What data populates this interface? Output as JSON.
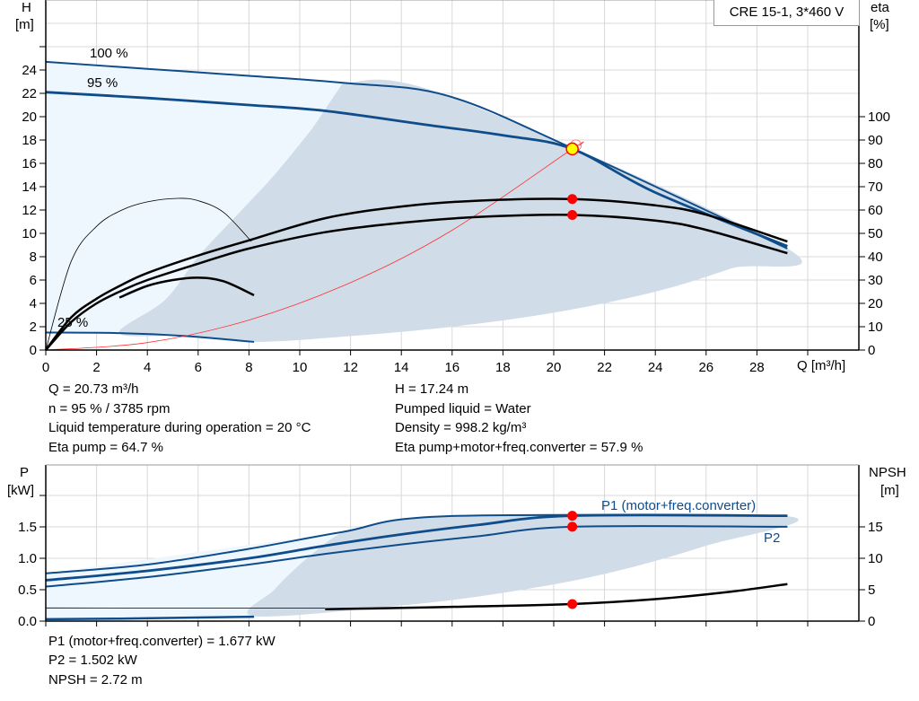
{
  "chart_data": [
    {
      "type": "line",
      "title": "CRE 15-1, 3*460 V",
      "xlabel": "Q [m³/h]",
      "ylabel": "H\n[m]",
      "y2label": "eta\n[%]",
      "xlim": [
        0,
        32
      ],
      "ylim": [
        0,
        30
      ],
      "y2lim": [
        0,
        115
      ],
      "xticks": [
        0,
        2,
        4,
        6,
        8,
        10,
        12,
        14,
        16,
        18,
        20,
        22,
        24,
        26,
        28
      ],
      "yticks": [
        0,
        2,
        4,
        6,
        8,
        10,
        12,
        14,
        16,
        18,
        20,
        22,
        24
      ],
      "y2ticks": [
        0,
        10,
        20,
        30,
        40,
        50,
        60,
        70,
        80,
        90,
        100
      ],
      "grid": true,
      "colors": {
        "curve": "#0f4c8a",
        "system": "#ff3030",
        "eta": "#000000",
        "light_area": "#eef6fe",
        "dark_area": "#d0dce8",
        "point": "#ff0000",
        "duty": "#ffff00"
      },
      "speed_labels": [
        "100 %",
        "95 %",
        "25 %"
      ],
      "series": [
        {
          "name": "100 %",
          "axis": "H",
          "points": [
            [
              0,
              24.7
            ],
            [
              4,
              24.1
            ],
            [
              8,
              23.5
            ],
            [
              11.7,
              22.9
            ],
            [
              15.8,
              21.8
            ],
            [
              20.73,
              17.3
            ],
            [
              29.2,
              8.7
            ]
          ]
        },
        {
          "name": "95 %",
          "axis": "H",
          "points": [
            [
              0,
              22.1
            ],
            [
              4,
              21.6
            ],
            [
              8,
              21.0
            ],
            [
              11,
              20.5
            ],
            [
              15,
              19.3
            ],
            [
              18,
              18.4
            ],
            [
              20.73,
              17.24
            ],
            [
              24,
              13.5
            ],
            [
              29.2,
              8.9
            ]
          ]
        },
        {
          "name": "25 %",
          "axis": "H",
          "points": [
            [
              0,
              1.5
            ],
            [
              2.9,
              1.45
            ],
            [
              5.5,
              1.2
            ],
            [
              8.2,
              0.7
            ]
          ]
        },
        {
          "axis": "H",
          "role": "system",
          "points": [
            [
              0,
              0
            ],
            [
              4,
              0.64
            ],
            [
              8,
              2.57
            ],
            [
              12,
              5.78
            ],
            [
              16,
              10.27
            ],
            [
              20.73,
              17.24
            ],
            [
              21,
              17.5
            ]
          ]
        },
        {
          "axis": "eta",
          "role": "eta pump",
          "points": [
            [
              0,
              0
            ],
            [
              1,
              14
            ],
            [
              2,
              22
            ],
            [
              3,
              28
            ],
            [
              4,
              33
            ],
            [
              6,
              40.5
            ],
            [
              8,
              47
            ],
            [
              11,
              56.5
            ],
            [
              14,
              61.5
            ],
            [
              17,
              64
            ],
            [
              20.73,
              64.7
            ],
            [
              24,
              62
            ],
            [
              26,
              58
            ],
            [
              29.2,
              46.5
            ]
          ]
        },
        {
          "axis": "eta",
          "role": "eta total",
          "points": [
            [
              0,
              0
            ],
            [
              1,
              12
            ],
            [
              2,
              20
            ],
            [
              3,
              25.5
            ],
            [
              4,
              30
            ],
            [
              6,
              37
            ],
            [
              8,
              43.5
            ],
            [
              11,
              50.5
            ],
            [
              14,
              54.5
            ],
            [
              17,
              57
            ],
            [
              20.73,
              57.9
            ],
            [
              24,
              55.5
            ],
            [
              26,
              51.5
            ],
            [
              29.2,
              41.5
            ]
          ]
        },
        {
          "axis": "eta",
          "role": "eta pump 25 %",
          "points": [
            [
              0,
              0
            ],
            [
              1,
              38
            ],
            [
              2,
              53
            ],
            [
              3,
              60
            ],
            [
              4,
              63.5
            ],
            [
              5.2,
              65
            ],
            [
              6,
              64
            ],
            [
              7,
              59
            ],
            [
              8.1,
              46.5
            ]
          ]
        },
        {
          "axis": "eta",
          "role": "eta total 25 %",
          "points": [
            [
              2.9,
              22.5
            ],
            [
              4,
              27.5
            ],
            [
              5,
              30
            ],
            [
              6,
              31
            ],
            [
              7,
              29.5
            ],
            [
              8.2,
              23.5
            ]
          ]
        }
      ],
      "areas": {
        "light": [
          [
            0,
            1.5
          ],
          [
            0,
            24.7
          ],
          [
            11.7,
            22.9
          ],
          [
            15.8,
            21.8
          ],
          [
            29.2,
            8.7
          ],
          [
            8.2,
            0.7
          ],
          [
            2.9,
            1.45
          ]
        ],
        "dark": [
          [
            11.7,
            22.9
          ],
          [
            15.8,
            21.8
          ],
          [
            29.2,
            8.7
          ],
          [
            27,
            7
          ],
          [
            24,
            5
          ],
          [
            20,
            3.2
          ],
          [
            16,
            2
          ],
          [
            12,
            1.2
          ],
          [
            8.2,
            0.7
          ],
          [
            5.5,
            1.2
          ],
          [
            2.9,
            1.45
          ],
          [
            4.7,
            4.3
          ],
          [
            6,
            8
          ],
          [
            7.5,
            11.5
          ],
          [
            9,
            15
          ],
          [
            10.5,
            19
          ]
        ]
      },
      "duty_point": {
        "Q": 20.73,
        "H": 17.24,
        "eta_pump": 64.7,
        "eta_total": 57.9
      }
    },
    {
      "type": "line",
      "ylabel": "P\n[kW]",
      "y2label": "NPSH\n[m]",
      "xlim": [
        0,
        32
      ],
      "ylim": [
        0,
        2.5
      ],
      "y2lim": [
        0,
        25
      ],
      "yticks": [
        0.0,
        0.5,
        1.0,
        1.5
      ],
      "y2ticks": [
        0,
        5,
        10,
        15
      ],
      "grid": true,
      "series": [
        {
          "name": "P1 (motor+freq.converter)",
          "axis": "P",
          "points": [
            [
              0,
              0.76
            ],
            [
              4,
              0.9
            ],
            [
              8,
              1.15
            ],
            [
              11.7,
              1.42
            ],
            [
              15.8,
              1.67
            ],
            [
              29.2,
              1.677
            ]
          ]
        },
        {
          "axis": "P",
          "role": "P1 95 %",
          "points": [
            [
              0,
              0.65
            ],
            [
              4,
              0.8
            ],
            [
              8,
              1.0
            ],
            [
              11,
              1.2
            ],
            [
              14,
              1.38
            ],
            [
              17,
              1.53
            ],
            [
              20.73,
              1.677
            ],
            [
              29.2,
              1.677
            ]
          ]
        },
        {
          "name": "P2",
          "axis": "P",
          "points": [
            [
              0,
              0.55
            ],
            [
              4,
              0.7
            ],
            [
              8,
              0.9
            ],
            [
              11,
              1.07
            ],
            [
              14,
              1.22
            ],
            [
              17,
              1.35
            ],
            [
              20.73,
              1.502
            ],
            [
              29.2,
              1.502
            ]
          ]
        },
        {
          "axis": "P",
          "role": "P 25 %",
          "points": [
            [
              0,
              0.03
            ],
            [
              2.9,
              0.04
            ],
            [
              8.2,
              0.07
            ]
          ]
        },
        {
          "axis": "NPSH",
          "role": "NPSH",
          "points": [
            [
              11,
              1.9
            ],
            [
              14,
              2.1
            ],
            [
              17,
              2.35
            ],
            [
              20.73,
              2.72
            ],
            [
              24,
              3.5
            ],
            [
              27,
              4.7
            ],
            [
              29.2,
              5.9
            ]
          ]
        },
        {
          "axis": "NPSH",
          "role": "NPSH thin",
          "points": [
            [
              0,
              2.1
            ],
            [
              11,
              2.05
            ]
          ]
        }
      ],
      "areas": {
        "light": [
          [
            0,
            0.02
          ],
          [
            0,
            0.76
          ],
          [
            11.7,
            1.42
          ],
          [
            15.8,
            1.67
          ],
          [
            29.2,
            1.67
          ],
          [
            8.2,
            0.06
          ]
        ],
        "dark": [
          [
            11.7,
            1.42
          ],
          [
            15.8,
            1.67
          ],
          [
            29.2,
            1.67
          ],
          [
            26,
            1.2
          ],
          [
            22,
            0.75
          ],
          [
            18,
            0.45
          ],
          [
            14,
            0.25
          ],
          [
            8.2,
            0.08
          ],
          [
            9,
            0.5
          ],
          [
            10,
            0.9
          ],
          [
            11.2,
            1.3
          ]
        ]
      },
      "duty_point": {
        "P1": 1.677,
        "P2": 1.502,
        "NPSH": 2.72
      }
    }
  ],
  "readout_top": {
    "left": [
      "Q = 20.73 m³/h",
      "n = 95 % / 3785 rpm",
      "Liquid temperature during operation = 20 °C",
      "Eta pump = 64.7 %"
    ],
    "right": [
      "H = 17.24 m",
      "Pumped liquid = Water",
      "Density = 998.2 kg/m³",
      "Eta pump+motor+freq.converter = 57.9 %"
    ]
  },
  "readout_bottom": [
    "P1 (motor+freq.converter) = 1.677 kW",
    "P2 = 1.502 kW",
    "NPSH = 2.72 m"
  ],
  "labels": {
    "h": "H",
    "h_unit": "[m]",
    "eta": "eta",
    "eta_unit": "[%]",
    "p": "P",
    "p_unit": "[kW]",
    "npsh": "NPSH",
    "npsh_unit": "[m]"
  }
}
